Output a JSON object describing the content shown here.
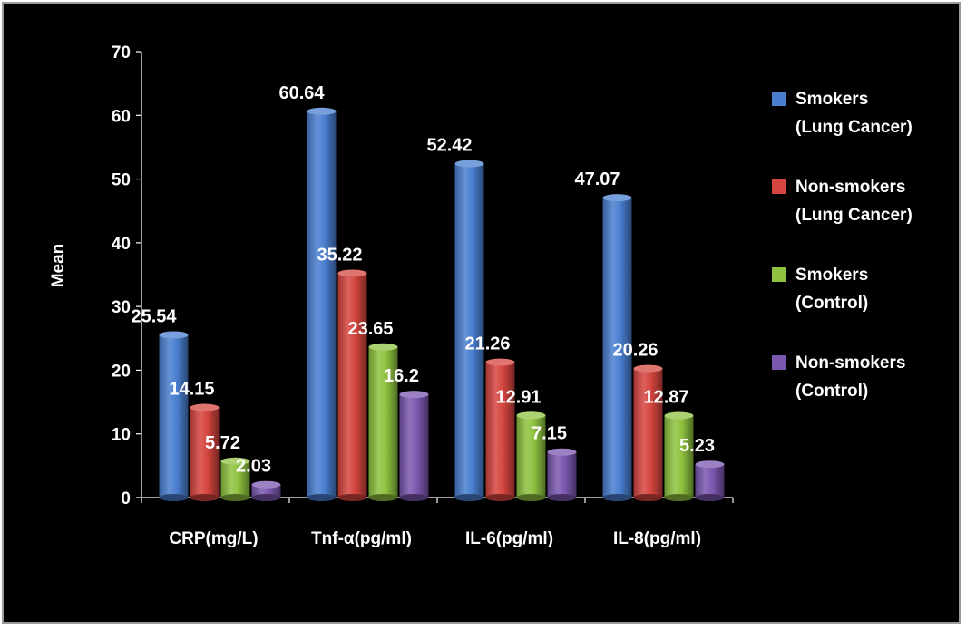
{
  "chart_data": {
    "type": "bar",
    "title": "",
    "ylabel": "Mean",
    "xlabel": "",
    "ylim": [
      0,
      70
    ],
    "yticks": [
      0,
      10,
      20,
      30,
      40,
      50,
      60,
      70
    ],
    "categories": [
      "CRP(mg/L)",
      "Tnf-α(pg/ml)",
      "IL-6(pg/ml)",
      "IL-8(pg/ml)"
    ],
    "series": [
      {
        "name": [
          "Smokers",
          "(Lung Cancer)"
        ],
        "color": "#4a7fd0",
        "values": [
          25.54,
          60.64,
          52.42,
          47.07
        ],
        "labels": [
          "25.54",
          "60.64",
          "52.42",
          "47.07"
        ]
      },
      {
        "name": [
          "Non-smokers",
          "(Lung Cancer)"
        ],
        "color": "#d6453f",
        "values": [
          14.15,
          35.22,
          21.26,
          20.26
        ],
        "labels": [
          "14.15",
          "35.22",
          "21.26",
          "20.26"
        ]
      },
      {
        "name": [
          "Smokers",
          "(Control)"
        ],
        "color": "#8fc240",
        "values": [
          5.72,
          23.65,
          12.91,
          12.87
        ],
        "labels": [
          "5.72",
          "23.65",
          "12.91",
          "12.87"
        ]
      },
      {
        "name": [
          "Non-smokers",
          "(Control)"
        ],
        "color": "#7b58b0",
        "values": [
          2.03,
          16.2,
          7.15,
          5.23
        ],
        "labels": [
          "2.03",
          "16.2",
          "7.15",
          "5.23"
        ]
      }
    ],
    "legend_position": "right",
    "grid": false
  }
}
